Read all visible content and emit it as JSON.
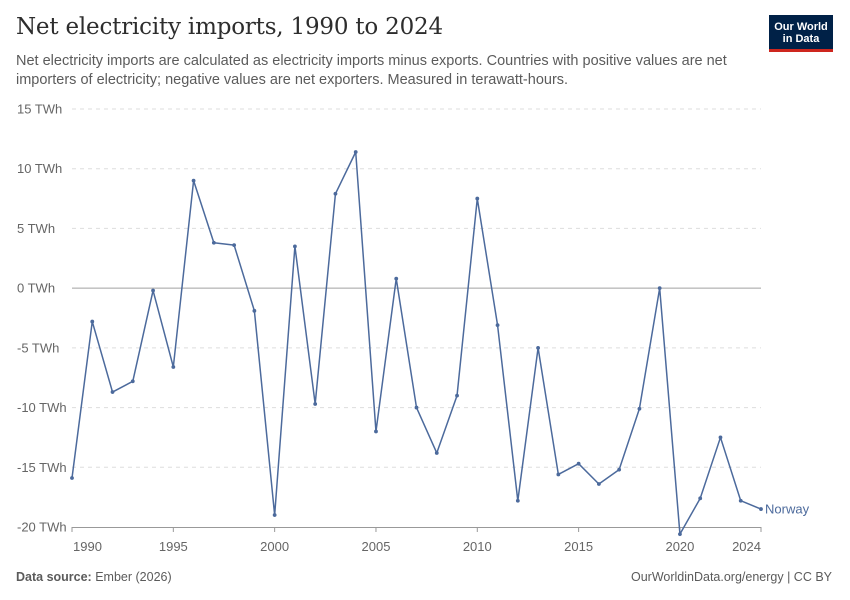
{
  "header": {
    "title": "Net electricity imports, 1990 to 2024",
    "subtitle": "Net electricity imports are calculated as electricity imports minus exports. Countries with positive values are net importers of electricity; negative values are net exporters. Measured in terawatt-hours."
  },
  "logo": {
    "line1": "Our World",
    "line2": "in Data",
    "bg_color": "#002147",
    "accent_color": "#ce261e"
  },
  "footer": {
    "source_label": "Data source:",
    "source_value": "Ember (2026)",
    "credit": "OurWorldinData.org/energy | CC BY"
  },
  "chart_data": {
    "type": "line",
    "title": "Net electricity imports, 1990 to 2024",
    "xlabel": "",
    "ylabel": "",
    "xlim": [
      1990,
      2024
    ],
    "ylim": [
      -20,
      15
    ],
    "y_ticks": [
      -20,
      -15,
      -10,
      -5,
      0,
      5,
      10,
      15
    ],
    "y_tick_labels": [
      "-20 TWh",
      "-15 TWh",
      "-10 TWh",
      "-5 TWh",
      "0 TWh",
      "5 TWh",
      "10 TWh",
      "15 TWh"
    ],
    "x_ticks": [
      1990,
      1995,
      2000,
      2005,
      2010,
      2015,
      2020,
      2024
    ],
    "x_tick_labels": [
      "1990",
      "1995",
      "2000",
      "2005",
      "2010",
      "2015",
      "2020",
      "2024"
    ],
    "grid": "horizontal dashed",
    "series": [
      {
        "name": "Norway",
        "color": "#4c6a9c",
        "x": [
          1990,
          1991,
          1992,
          1993,
          1994,
          1995,
          1996,
          1997,
          1998,
          1999,
          2000,
          2001,
          2002,
          2003,
          2004,
          2005,
          2006,
          2007,
          2008,
          2009,
          2010,
          2011,
          2012,
          2013,
          2014,
          2015,
          2016,
          2017,
          2018,
          2019,
          2020,
          2021,
          2022,
          2023,
          2024
        ],
        "values": [
          -15.9,
          -2.8,
          -8.7,
          -7.8,
          -0.2,
          -6.6,
          9.0,
          3.8,
          3.6,
          -1.9,
          -19.0,
          3.5,
          -9.7,
          7.9,
          11.4,
          -12.0,
          0.8,
          -10.0,
          -13.8,
          -9.0,
          7.5,
          -3.1,
          -17.8,
          -5.0,
          -15.6,
          -14.7,
          -16.4,
          -15.2,
          -10.1,
          0.0,
          -20.6,
          -17.6,
          -12.5,
          -17.8,
          -18.5
        ]
      }
    ]
  }
}
